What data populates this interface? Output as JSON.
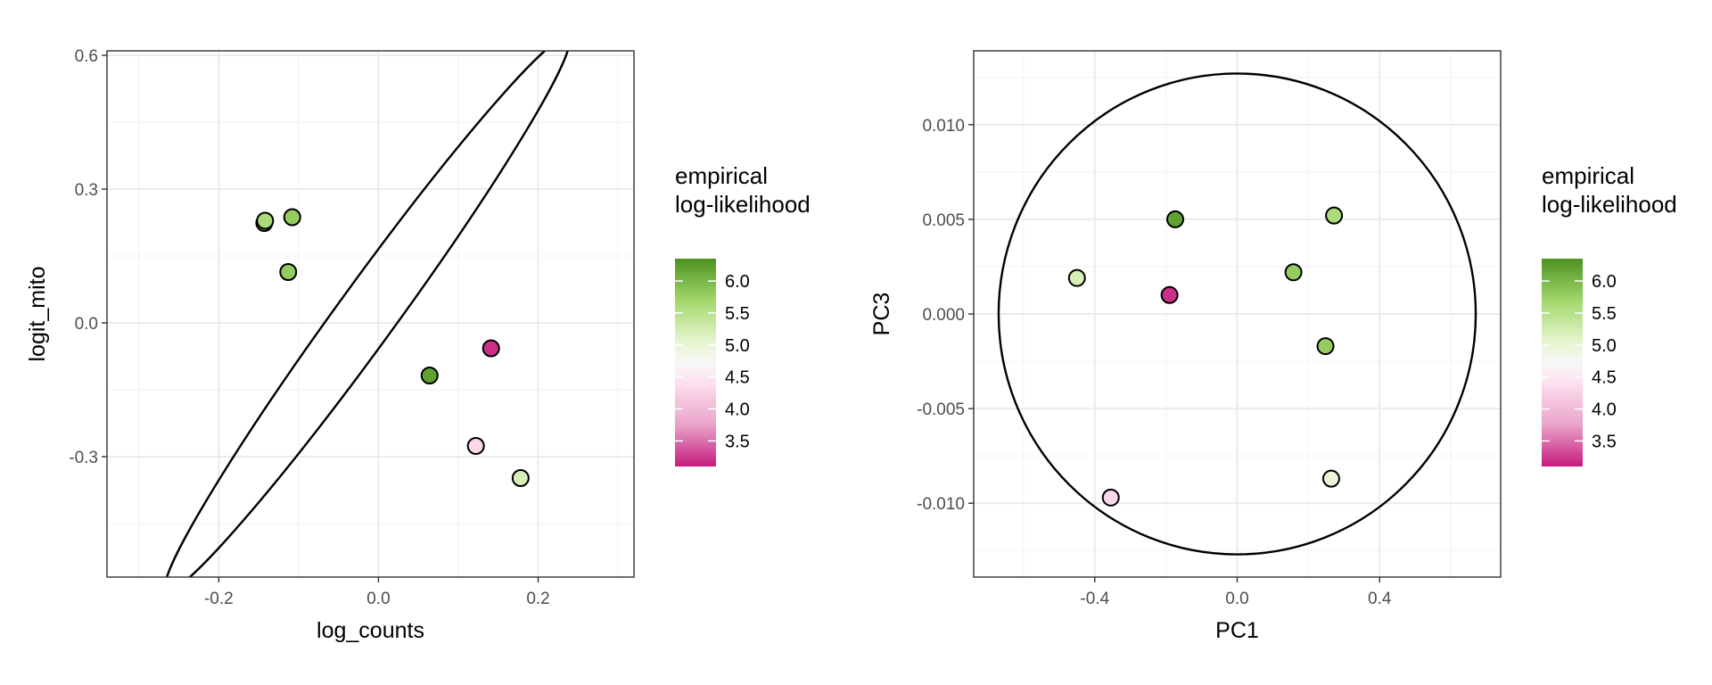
{
  "chart_data": [
    {
      "type": "scatter",
      "xlabel": "log_counts",
      "ylabel": "logit_mito",
      "xlim": [
        -0.34,
        0.32
      ],
      "ylim": [
        -0.57,
        0.61
      ],
      "xticks": [
        -0.2,
        0.0,
        0.2
      ],
      "xtick_labels": [
        "-0.2",
        "0.0",
        "0.2"
      ],
      "yticks": [
        -0.3,
        0.0,
        0.3,
        0.6
      ],
      "ytick_labels": [
        "-0.3",
        "0.0",
        "0.3",
        "0.6"
      ],
      "grid": true,
      "legend_position": "right",
      "color_variable": "empirical log-likelihood",
      "points": [
        {
          "x": -0.143,
          "y": 0.224,
          "value": 5.8
        },
        {
          "x": -0.142,
          "y": 0.229,
          "value": 5.6
        },
        {
          "x": -0.108,
          "y": 0.237,
          "value": 5.8
        },
        {
          "x": -0.113,
          "y": 0.114,
          "value": 5.8
        },
        {
          "x": 0.064,
          "y": -0.118,
          "value": 6.2
        },
        {
          "x": 0.141,
          "y": -0.057,
          "value": 3.2
        },
        {
          "x": 0.122,
          "y": -0.276,
          "value": 4.3
        },
        {
          "x": 0.178,
          "y": -0.348,
          "value": 5.2
        }
      ],
      "ellipse": {
        "cx": -0.014,
        "cy": 0.02,
        "rx": 0.428,
        "ry": 0.037,
        "angle_deg": -54
      }
    },
    {
      "type": "scatter",
      "xlabel": "PC1",
      "ylabel": "PC3",
      "xlim": [
        -0.74,
        0.74
      ],
      "ylim": [
        -0.0139,
        0.0139
      ],
      "xticks": [
        -0.4,
        0.0,
        0.4
      ],
      "xtick_labels": [
        "-0.4",
        "0.0",
        "0.4"
      ],
      "yticks": [
        -0.01,
        -0.005,
        0.0,
        0.005,
        0.01
      ],
      "ytick_labels": [
        "-0.010",
        "-0.005",
        "0.000",
        "0.005",
        "0.010"
      ],
      "grid": true,
      "legend_position": "right",
      "color_variable": "empirical log-likelihood",
      "points": [
        {
          "x": -0.45,
          "y": 0.0019,
          "value": 5.2
        },
        {
          "x": -0.174,
          "y": 0.005,
          "value": 6.2
        },
        {
          "x": -0.19,
          "y": 0.001,
          "value": 3.2
        },
        {
          "x": 0.158,
          "y": 0.0022,
          "value": 5.8
        },
        {
          "x": 0.272,
          "y": 0.0052,
          "value": 5.6
        },
        {
          "x": 0.248,
          "y": -0.0017,
          "value": 5.8
        },
        {
          "x": -0.355,
          "y": -0.0097,
          "value": 4.3
        },
        {
          "x": 0.264,
          "y": -0.0087,
          "value": 5.0
        }
      ],
      "ellipse": {
        "cx": 0.0,
        "cy": 0.0,
        "rx": 0.67,
        "ry": 0.0127,
        "angle_deg": 0
      }
    }
  ],
  "legends": [
    {
      "title_line1": "empirical",
      "title_line2": "log-likelihood",
      "ticks": [
        6.0,
        5.5,
        5.0,
        4.5,
        4.0,
        3.5
      ],
      "tick_labels": [
        "6.0",
        "5.5",
        "5.0",
        "4.5",
        "4.0",
        "3.5"
      ]
    },
    {
      "title_line1": "empirical",
      "title_line2": "log-likelihood",
      "ticks": [
        6.0,
        5.5,
        5.0,
        4.5,
        4.0,
        3.5
      ],
      "tick_labels": [
        "6.0",
        "5.5",
        "5.0",
        "4.5",
        "4.0",
        "3.5"
      ]
    }
  ],
  "color_scale": {
    "min": 3.1,
    "max": 6.35,
    "stops": [
      {
        "value": 3.1,
        "color": "#c51b7d"
      },
      {
        "value": 3.75,
        "color": "#e9a3c9"
      },
      {
        "value": 4.4,
        "color": "#fde0ef"
      },
      {
        "value": 4.72,
        "color": "#f7f7f7"
      },
      {
        "value": 5.05,
        "color": "#e6f5d0"
      },
      {
        "value": 5.7,
        "color": "#a1d76a"
      },
      {
        "value": 6.35,
        "color": "#4d9221"
      }
    ]
  }
}
